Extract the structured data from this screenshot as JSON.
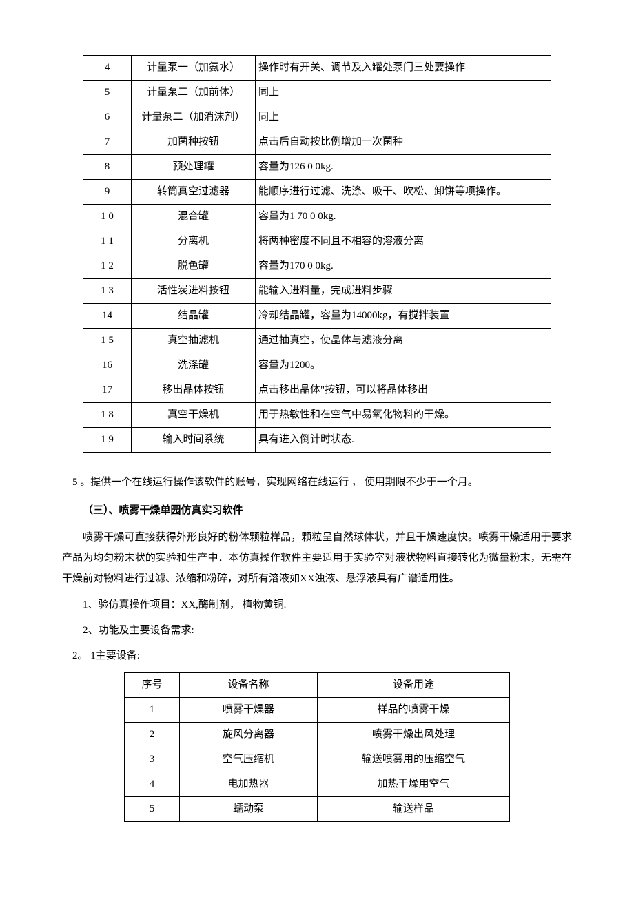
{
  "table1": {
    "rows": [
      {
        "num": "4",
        "name": "计量泵一（加氨水）",
        "desc": "操作时有开关、调节及入罐处泵门三处要操作"
      },
      {
        "num": "5",
        "name": "计量泵二（加前体）",
        "desc": "同上"
      },
      {
        "num": "6",
        "name": "计量泵二（加消沫剂）",
        "desc": "同上"
      },
      {
        "num": "7",
        "name": "加菌种按钮",
        "desc": "点击后自动按比例增加一次菌种"
      },
      {
        "num": "8",
        "name": "预处理罐",
        "desc": "容量为126 0 0kg."
      },
      {
        "num": "9",
        "name": "转筒真空过滤器",
        "desc": " 能顺序进行过滤、洗涤、吸干、吹松、卸饼等项操作。"
      },
      {
        "num": "1 0",
        "name": "混合罐",
        "desc": "容量为1 70 0 0kg."
      },
      {
        "num": "1 1",
        "name": "分离机",
        "desc": " 将两种密度不同且不相容的溶液分离"
      },
      {
        "num": "1 2",
        "name": "脱色罐",
        "desc": "容量为170 0 0kg."
      },
      {
        "num": "1 3",
        "name": "活性炭进料按钮",
        "desc": "能输入进料量，完成进料步骤"
      },
      {
        "num": "14",
        "name": "结晶罐",
        "desc": "冷却结晶罐，容量为14000kg，有搅拌装置"
      },
      {
        "num": "1 5",
        "name": "真空抽滤机",
        "desc": "通过抽真空，使晶体与滤液分离"
      },
      {
        "num": "16",
        "name": "洗涤罐",
        "desc": "容量为1200。"
      },
      {
        "num": "17",
        "name": "移出晶体按钮",
        "desc": "点击移出晶体\"按钮，可以将晶体移出"
      },
      {
        "num": "1 8",
        "name": "真空干燥机",
        "desc": "用于热敏性和在空气中易氧化物料的干燥。"
      },
      {
        "num": "1 9",
        "name": "输入时间系统",
        "desc": "具有进入倒计时状态."
      }
    ]
  },
  "paragraph5": "5 。提供一个在线运行操作该软件的账号，实现网络在线运行 ， 使用期限不少于一个月。",
  "section3_title": "（三）、喷雾干燥单园仿真实习软件",
  "section3_body": "喷雾干燥可直接获得外形良好的粉体颗粒样品，颗粒呈自然球体状，并且干燥速度快。喷雾干燥适用于要求产品为均匀粉末状的实验和生产中．本仿真操作软件主要适用于实验室对液状物料直接转化为微量粉末，无需在干燥前对物料进行过滤、浓缩和粉碎，对所有溶液如XX浊液、悬浮液具有广谱适用性。",
  "item1": "1、验仿真操作项目：XX,酶制剂， 植物黄铜.",
  "item2": "2、功能及主要设备需求:",
  "item2_1": "2。 1主要设备:",
  "table2": {
    "header": {
      "c1": "序号",
      "c2": "设备名称",
      "c3": "设备用途"
    },
    "rows": [
      {
        "c1": "1",
        "c2": "喷雾干燥器",
        "c3": "样品的喷雾干燥"
      },
      {
        "c1": "2",
        "c2": "旋风分离器",
        "c3": "喷雾干燥出风处理"
      },
      {
        "c1": "3",
        "c2": "空气压缩机",
        "c3": "输送喷雾用的压缩空气"
      },
      {
        "c1": "4",
        "c2": "电加热器",
        "c3": "加热干燥用空气"
      },
      {
        "c1": "5",
        "c2": "蠕动泵",
        "c3": "输送样品"
      }
    ]
  }
}
